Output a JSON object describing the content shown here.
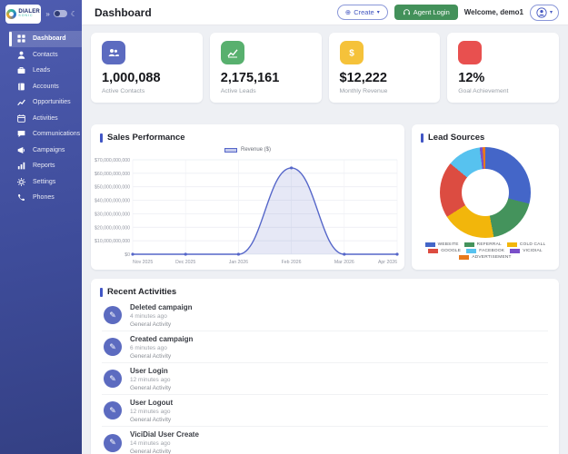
{
  "colors": {
    "accent": "#4156c5",
    "line": "#5566c9",
    "line_fill": "rgba(101,115,201,0.16)",
    "agent_button": "#43915a",
    "activity_icon": "#5c6bc0"
  },
  "sidebar": {
    "logo_name": "DIALER",
    "logo_sub": "SONIC",
    "collapse_icon": "»",
    "moon_icon": "☾",
    "items": [
      {
        "label": "Dashboard"
      },
      {
        "label": "Contacts"
      },
      {
        "label": "Leads"
      },
      {
        "label": "Accounts"
      },
      {
        "label": "Opportunities"
      },
      {
        "label": "Activities"
      },
      {
        "label": "Communications"
      },
      {
        "label": "Campaigns"
      },
      {
        "label": "Reports"
      },
      {
        "label": "Settings"
      },
      {
        "label": "Phones"
      }
    ],
    "active_item": "Dashboard"
  },
  "header": {
    "title": "Dashboard",
    "create_icon": "⊕",
    "create_label": "Create",
    "create_caret": "▾",
    "agent_login_label": "Agent Login",
    "welcome_text": "Welcome, demo1",
    "avatar_caret": "▾"
  },
  "stats": [
    {
      "value": "1,000,088",
      "label": "Active Contacts",
      "color": "#5c6bc0",
      "icon": "users-icon"
    },
    {
      "value": "2,175,161",
      "label": "Active Leads",
      "color": "#58b06e",
      "icon": "chart-line-icon"
    },
    {
      "value": "$12,222",
      "label": "Monthly Revenue",
      "color": "#f5c23a",
      "icon": "dollar-icon"
    },
    {
      "value": "12%",
      "label": "Goal Achievement",
      "color": "#e8504f",
      "icon": "target-icon"
    }
  ],
  "chart_data": [
    {
      "type": "line",
      "title": "Sales Performance",
      "categories": [
        "Nov 2025",
        "Dec 2025",
        "Jan 2026",
        "Feb 2026",
        "Mar 2026",
        "Apr 2026"
      ],
      "series": [
        {
          "name": "Revenue ($)",
          "values": [
            0,
            0,
            0,
            64000000000,
            0,
            0
          ]
        }
      ],
      "xlabel": "",
      "ylabel": "",
      "ylim": [
        0,
        70000000000
      ],
      "ytick_labels": [
        "$0",
        "$10,000,000,000",
        "$20,000,000,000",
        "$30,000,000,000",
        "$40,000,000,000",
        "$50,000,000,000",
        "$60,000,000,000",
        "$70,000,000,000"
      ],
      "grid": true,
      "legend_position": "top",
      "legend_label": "Revenue ($)"
    },
    {
      "type": "pie",
      "title": "Lead Sources",
      "donut": true,
      "labels": [
        "WEBSITE",
        "REFERRAL",
        "COLD CALL",
        "GOOGLE",
        "FACEBOOK",
        "VICIDIAL",
        "ADVERTISEMENT"
      ],
      "values": [
        29,
        18,
        19,
        20,
        12,
        1,
        1
      ],
      "colors": [
        "#4466c8",
        "#44935c",
        "#f2b60b",
        "#dc4c41",
        "#57c2ef",
        "#7a4fc9",
        "#e8791d"
      ],
      "legend_position": "bottom"
    }
  ],
  "activities": {
    "title": "Recent Activities",
    "icon_glyph": "✎",
    "items": [
      {
        "title": "Deleted campaign",
        "time": "4 minutes ago",
        "type": "General Activity"
      },
      {
        "title": "Created campaign",
        "time": "6 minutes ago",
        "type": "General Activity"
      },
      {
        "title": "User Login",
        "time": "12 minutes ago",
        "type": "General Activity"
      },
      {
        "title": "User Logout",
        "time": "12 minutes ago",
        "type": "General Activity"
      },
      {
        "title": "ViciDial User Create",
        "time": "14 minutes ago",
        "type": "General Activity"
      }
    ]
  }
}
